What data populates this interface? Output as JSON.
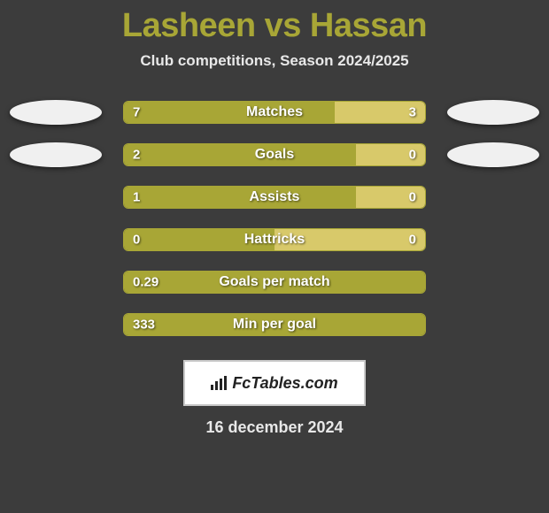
{
  "title": "Lasheen vs Hassan",
  "subtitle": "Club competitions, Season 2024/2025",
  "colors": {
    "background": "#3c3c3c",
    "title": "#a8a636",
    "text": "#e8e8e8",
    "bar_primary": "#a8a636",
    "bar_secondary": "#d8c96a",
    "badge": "#f0f0f0"
  },
  "rows": [
    {
      "label": "Matches",
      "left_value": "7",
      "right_value": "3",
      "left_pct": 70,
      "right_pct": 30,
      "show_badges": true
    },
    {
      "label": "Goals",
      "left_value": "2",
      "right_value": "0",
      "left_pct": 77,
      "right_pct": 23,
      "show_badges": true
    },
    {
      "label": "Assists",
      "left_value": "1",
      "right_value": "0",
      "left_pct": 77,
      "right_pct": 23,
      "show_badges": false
    },
    {
      "label": "Hattricks",
      "left_value": "0",
      "right_value": "0",
      "left_pct": 50,
      "right_pct": 50,
      "show_badges": false
    },
    {
      "label": "Goals per match",
      "left_value": "0.29",
      "right_value": "",
      "left_pct": 100,
      "right_pct": 0,
      "show_badges": false
    },
    {
      "label": "Min per goal",
      "left_value": "333",
      "right_value": "",
      "left_pct": 100,
      "right_pct": 0,
      "show_badges": false
    }
  ],
  "logo": "FcTables.com",
  "date": "16 december 2024"
}
